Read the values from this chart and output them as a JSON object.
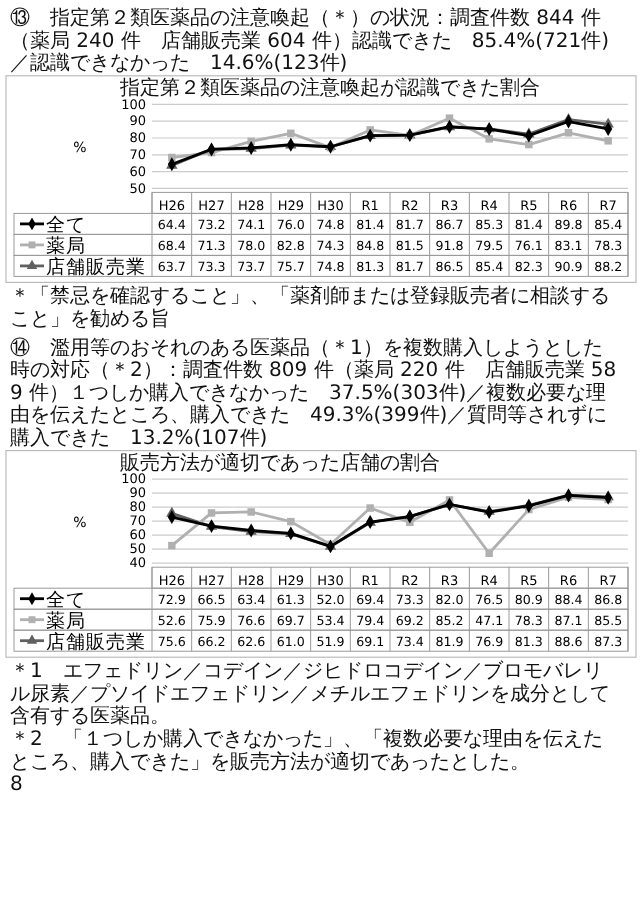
{
  "chart_data": [
    {
      "type": "line",
      "title": "指定第２類医薬品の注意喚起が認識できた割合",
      "subtitle": "⑬　指定第２類医薬品の注意喚起（＊）の状況：調査件数 844 件（薬局 240 件　店舗販売業 604 件）認識できた　85.4%(721件)／認識できなかった　14.6%(123件)",
      "ylabel": "%",
      "categories": [
        "H26",
        "H27",
        "H28",
        "H29",
        "H30",
        "R1",
        "R2",
        "R3",
        "R4",
        "R5",
        "R6",
        "R7"
      ],
      "ylim": [
        50,
        100
      ],
      "yticks": [
        50,
        60,
        70,
        80,
        90,
        100
      ],
      "grid": "y",
      "legend": "bottom",
      "series": [
        {
          "name": "全て",
          "color": "#000000",
          "marker": "diamond",
          "values": [
            64.4,
            73.2,
            74.1,
            76.0,
            74.8,
            81.4,
            81.7,
            86.7,
            85.3,
            81.4,
            89.8,
            85.4
          ],
          "value_labels": [
            "64.4",
            "73.2",
            "74.1",
            "76.0",
            "74.8",
            "81.4",
            "81.7",
            "86.7",
            "85.3",
            "81.4",
            "89.8",
            "85.4"
          ]
        },
        {
          "name": "薬局",
          "color": "#b0b0b0",
          "marker": "square",
          "values": [
            68.4,
            71.3,
            78.0,
            82.8,
            74.3,
            84.8,
            81.5,
            91.8,
            79.5,
            76.1,
            83.1,
            78.3
          ],
          "value_labels": [
            "68.4",
            "71.3",
            "78.0",
            "82.8",
            "74.3",
            "84.8",
            "81.5",
            "91.8",
            "79.5",
            "76.1",
            "83.1",
            "78.3"
          ]
        },
        {
          "name": "店舗販売業",
          "color": "#606060",
          "marker": "triangle",
          "values": [
            63.7,
            73.3,
            73.7,
            75.7,
            74.8,
            81.3,
            81.7,
            86.5,
            85.4,
            82.3,
            90.9,
            88.2
          ],
          "value_labels": [
            "63.7",
            "73.3",
            "73.7",
            "75.7",
            "74.8",
            "81.3",
            "81.7",
            "86.5",
            "85.4",
            "82.3",
            "90.9",
            "88.2"
          ]
        }
      ],
      "annotations": [
        "＊「禁忌を確認すること」、「薬剤師または登録販売者に相談すること」を勧める旨"
      ]
    },
    {
      "type": "line",
      "title": "販売方法が適切であった店舗の割合",
      "subtitle": "⑭　濫用等のおそれのある医薬品（＊1）を複数購入しようとした時の対応（＊2）：調査件数 809 件（薬局 220 件　店舗販売業 589 件）１つしか購入できなかった　37.5%(303件)／複数必要な理由を伝えたところ、購入できた　49.3%(399件)／質問等されずに購入できた　13.2%(107件)",
      "ylabel": "%",
      "categories": [
        "H26",
        "H27",
        "H28",
        "H29",
        "H30",
        "R1",
        "R2",
        "R3",
        "R4",
        "R5",
        "R6",
        "R7"
      ],
      "ylim": [
        40,
        100
      ],
      "yticks": [
        40,
        50,
        60,
        70,
        80,
        90,
        100
      ],
      "grid": "y",
      "legend": "bottom",
      "series": [
        {
          "name": "全て",
          "color": "#000000",
          "marker": "diamond",
          "values": [
            72.9,
            66.5,
            63.4,
            61.3,
            52.0,
            69.4,
            73.3,
            82.0,
            76.5,
            80.9,
            88.4,
            86.8
          ],
          "value_labels": [
            "72.9",
            "66.5",
            "63.4",
            "61.3",
            "52.0",
            "69.4",
            "73.3",
            "82.0",
            "76.5",
            "80.9",
            "88.4",
            "86.8"
          ]
        },
        {
          "name": "薬局",
          "color": "#b0b0b0",
          "marker": "square",
          "values": [
            52.6,
            75.9,
            76.6,
            69.7,
            53.4,
            79.4,
            69.2,
            85.2,
            47.1,
            78.3,
            87.1,
            85.5
          ],
          "value_labels": [
            "52.6",
            "75.9",
            "76.6",
            "69.7",
            "53.4",
            "79.4",
            "69.2",
            "85.2",
            "47.1",
            "78.3",
            "87.1",
            "85.5"
          ]
        },
        {
          "name": "店舗販売業",
          "color": "#606060",
          "marker": "triangle",
          "values": [
            75.6,
            66.2,
            62.6,
            61.0,
            51.9,
            69.1,
            73.4,
            81.9,
            76.9,
            81.3,
            88.6,
            87.3
          ],
          "value_labels": [
            "75.6",
            "66.2",
            "62.6",
            "61.0",
            "51.9",
            "69.1",
            "73.4",
            "81.9",
            "76.9",
            "81.3",
            "88.6",
            "87.3"
          ]
        }
      ],
      "annotations": [
        "＊1　エフェドリン／コデイン／ジヒドロコデイン／ブロモバレリル尿素／プソイドエフェドリン／メチルエフェドリンを成分として含有する医薬品。",
        "＊2　「１つしか購入できなかった」、「複数必要な理由を伝えたところ、購入できた」を販売方法が適切であったとした。",
        "8"
      ]
    }
  ]
}
